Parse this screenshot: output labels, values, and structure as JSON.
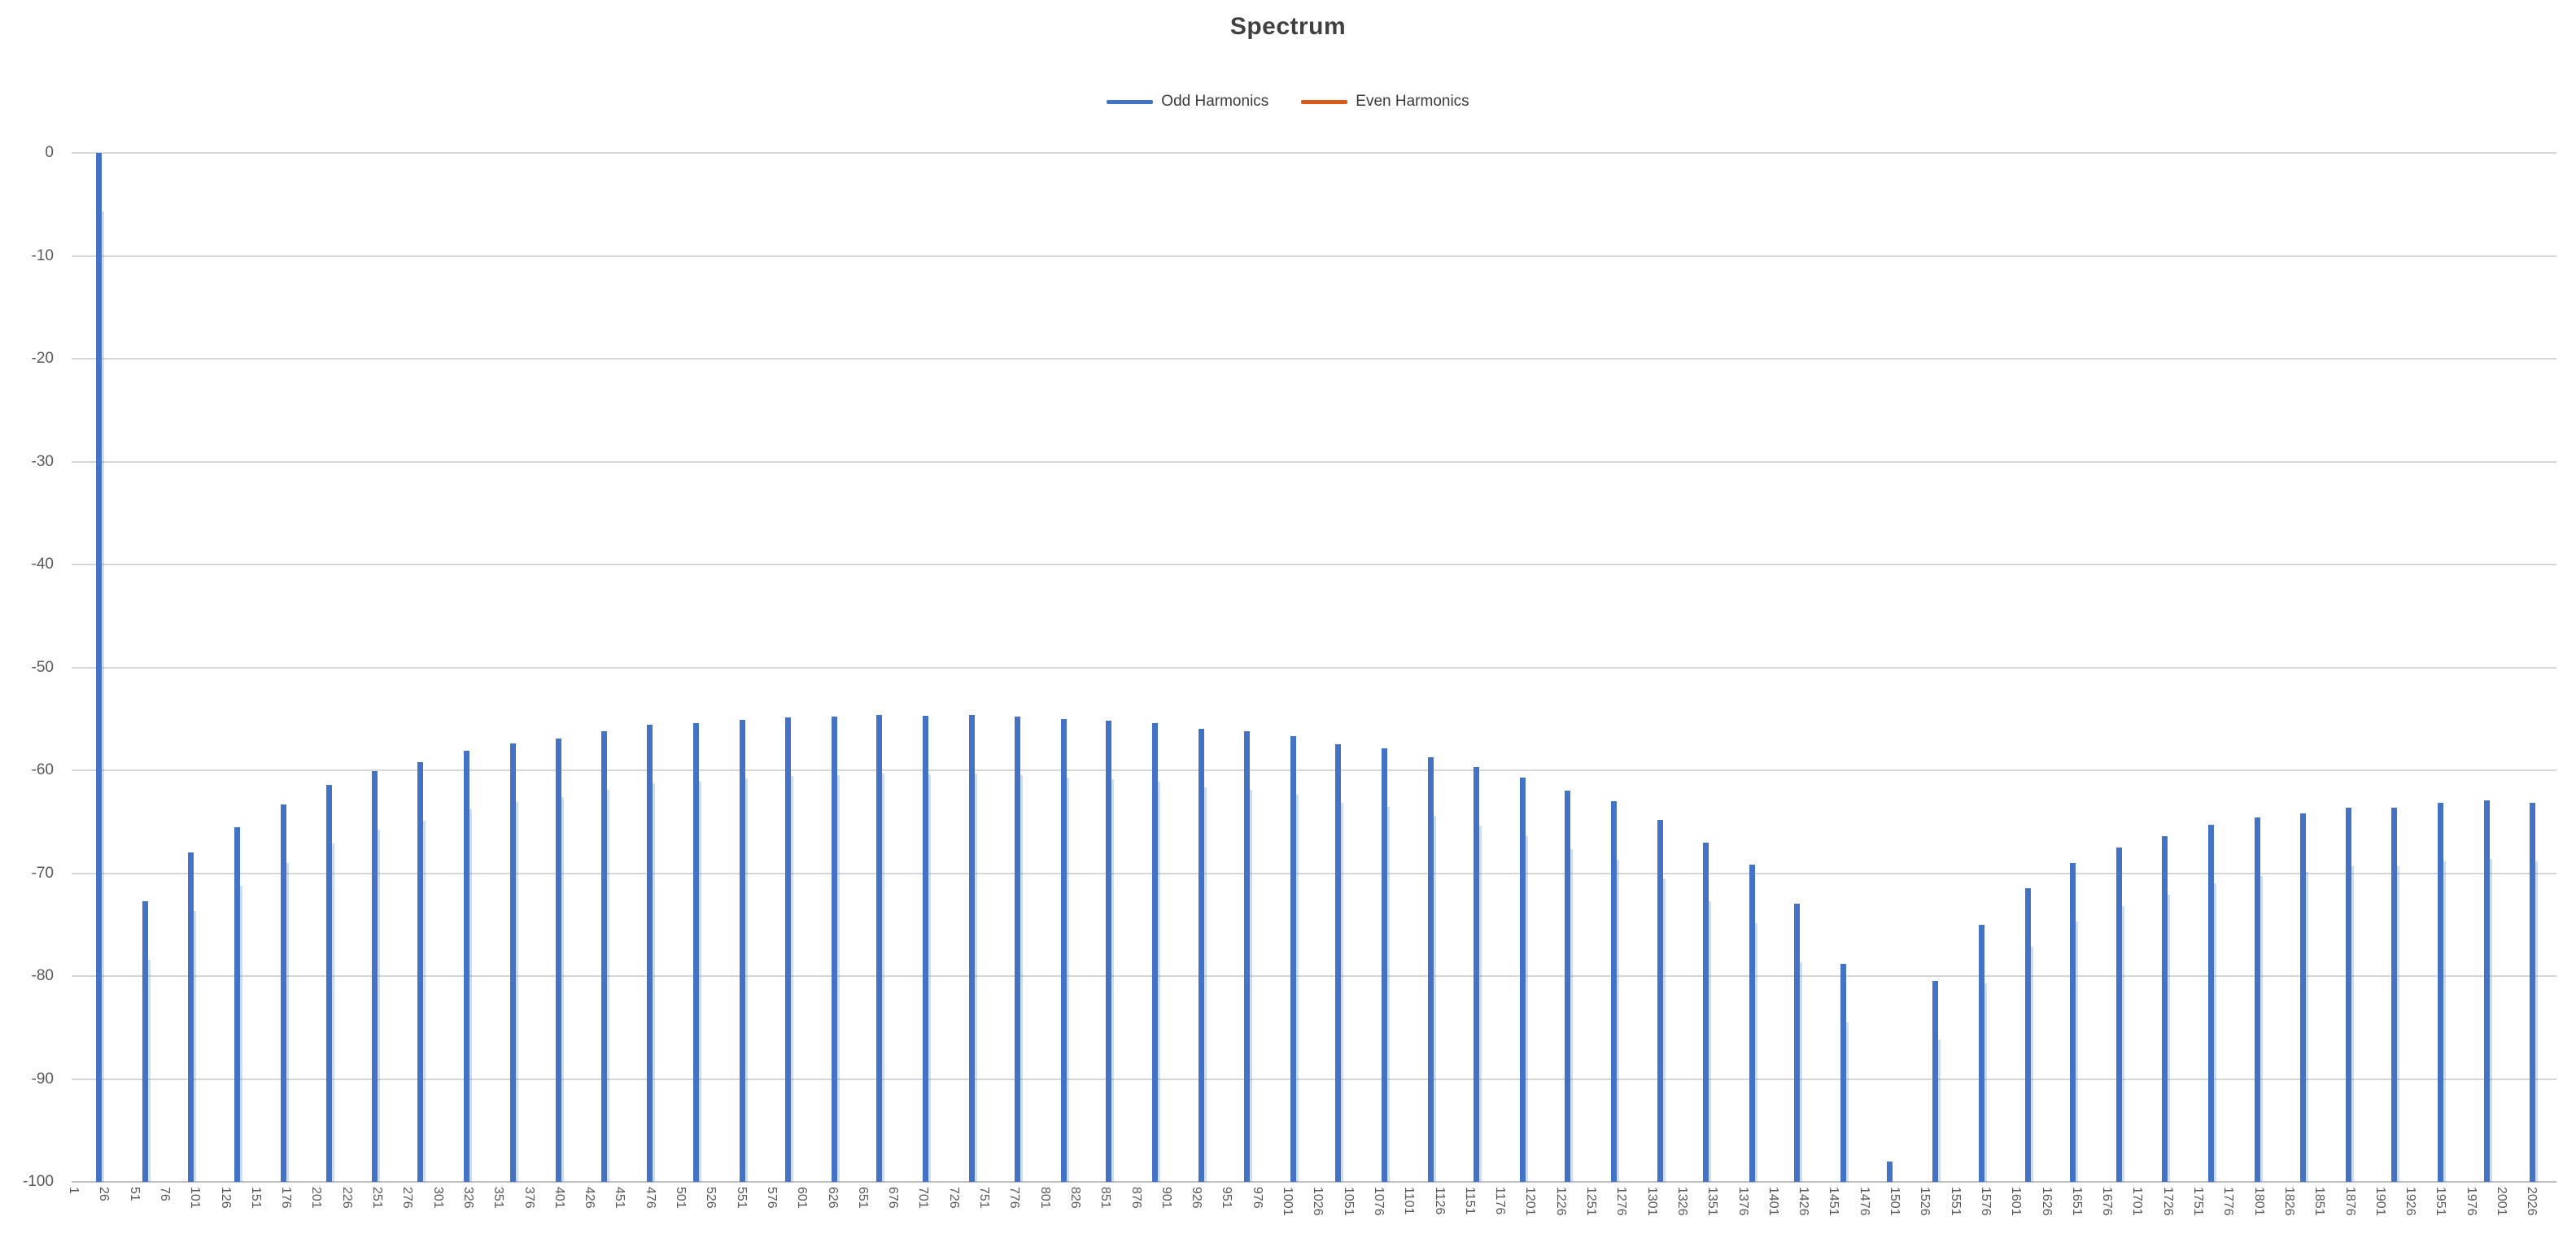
{
  "title": "Spectrum",
  "legend": {
    "items": [
      {
        "label": "Odd Harmonics",
        "color": "#4472C4"
      },
      {
        "label": "Even Harmonics",
        "color": "#D9581A"
      }
    ]
  },
  "y_axis": {
    "tick_labels": [
      "0",
      "-10",
      "-20",
      "-30",
      "-40",
      "-50",
      "-60",
      "-70",
      "-80",
      "-90",
      "-100"
    ],
    "max": 0,
    "min": -100,
    "step": 10
  },
  "x_axis": {
    "tick_labels": [
      "1",
      "26",
      "51",
      "76",
      "101",
      "126",
      "151",
      "176",
      "201",
      "226",
      "251",
      "276",
      "301",
      "326",
      "351",
      "376",
      "401",
      "426",
      "451",
      "476",
      "501",
      "526",
      "551",
      "576",
      "601",
      "626",
      "651",
      "676",
      "701",
      "726",
      "751",
      "776",
      "801",
      "826",
      "851",
      "876",
      "901",
      "926",
      "951",
      "976",
      "1001",
      "1026",
      "1051",
      "1076",
      "1101",
      "1126",
      "1151",
      "1176",
      "1201",
      "1226",
      "1251",
      "1276",
      "1301",
      "1326",
      "1351",
      "1376",
      "1401",
      "1426",
      "1451",
      "1476",
      "1501",
      "1526",
      "1551",
      "1576",
      "1601",
      "1626",
      "1651",
      "1676",
      "1701",
      "1726",
      "1751",
      "1776",
      "1801",
      "1826",
      "1851",
      "1876",
      "1901",
      "1926",
      "1951",
      "1976",
      "2001",
      "2026"
    ]
  },
  "chart_data": {
    "type": "bar",
    "title": "Spectrum",
    "xlabel": "",
    "ylabel": "",
    "ylim": [
      -100,
      0
    ],
    "grid": true,
    "legend_position": "top-center",
    "bar_style": "thin vertical spikes anchored at axis bottom",
    "columns": [
      "x_bin",
      "dB"
    ],
    "series": [
      {
        "name": "Odd Harmonics",
        "color": "#4472C4",
        "points": [
          [
            22,
            0.0
          ],
          [
            60,
            -72.7
          ],
          [
            98,
            -68.0
          ],
          [
            136,
            -65.5
          ],
          [
            174,
            -63.3
          ],
          [
            212,
            -61.4
          ],
          [
            249,
            -60.1
          ],
          [
            287,
            -59.2
          ],
          [
            325,
            -58.1
          ],
          [
            363,
            -57.4
          ],
          [
            401,
            -56.9
          ],
          [
            438,
            -56.2
          ],
          [
            476,
            -55.6
          ],
          [
            514,
            -55.4
          ],
          [
            552,
            -55.1
          ],
          [
            590,
            -54.9
          ],
          [
            628,
            -54.8
          ],
          [
            665,
            -54.6
          ],
          [
            703,
            -54.7
          ],
          [
            741,
            -54.6
          ],
          [
            779,
            -54.8
          ],
          [
            817,
            -55.0
          ],
          [
            854,
            -55.2
          ],
          [
            892,
            -55.4
          ],
          [
            930,
            -56.0
          ],
          [
            968,
            -56.2
          ],
          [
            1006,
            -56.7
          ],
          [
            1043,
            -57.5
          ],
          [
            1081,
            -57.9
          ],
          [
            1119,
            -58.7
          ],
          [
            1157,
            -59.7
          ],
          [
            1195,
            -60.7
          ],
          [
            1232,
            -62.0
          ],
          [
            1270,
            -63.0
          ],
          [
            1308,
            -64.8
          ],
          [
            1346,
            -67.0
          ],
          [
            1384,
            -69.2
          ],
          [
            1421,
            -73.0
          ],
          [
            1459,
            -78.8
          ],
          [
            1497,
            -98.0
          ],
          [
            1535,
            -80.5
          ],
          [
            1573,
            -75.0
          ],
          [
            1611,
            -71.5
          ],
          [
            1648,
            -69.0
          ],
          [
            1686,
            -67.5
          ],
          [
            1724,
            -66.4
          ],
          [
            1762,
            -65.3
          ],
          [
            1800,
            -64.6
          ],
          [
            1838,
            -64.2
          ],
          [
            1875,
            -63.6
          ],
          [
            1913,
            -63.6
          ],
          [
            1951,
            -63.2
          ],
          [
            1989,
            -62.9
          ],
          [
            2027,
            -63.2
          ]
        ]
      },
      {
        "name": "Even Harmonics",
        "color": "#D9581A",
        "points": [],
        "note": "no bars visible (at or below -100 dB axis floor)"
      }
    ]
  }
}
